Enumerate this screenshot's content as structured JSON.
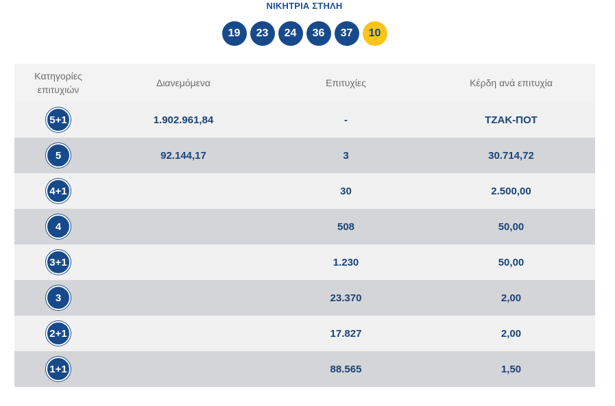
{
  "header": {
    "title": "ΝΙΚΗΤΡΙΑ ΣΤΗΛΗ",
    "numbers": [
      "19",
      "23",
      "24",
      "36",
      "37"
    ],
    "joker": "10"
  },
  "table": {
    "headers": {
      "category_line1": "Κατηγορίες",
      "category_line2": "επιτυχιών",
      "distributed": "Διανεμόμενα",
      "winners": "Επιτυχίες",
      "prize": "Κέρδη ανά επιτυχία"
    },
    "rows": [
      {
        "category": "5+1",
        "distributed": "1.902.961,84",
        "winners": "-",
        "prize": "ΤΖΑΚ-ΠΟΤ"
      },
      {
        "category": "5",
        "distributed": "92.144,17",
        "winners": "3",
        "prize": "30.714,72"
      },
      {
        "category": "4+1",
        "distributed": "",
        "winners": "30",
        "prize": "2.500,00"
      },
      {
        "category": "4",
        "distributed": "",
        "winners": "508",
        "prize": "50,00"
      },
      {
        "category": "3+1",
        "distributed": "",
        "winners": "1.230",
        "prize": "50,00"
      },
      {
        "category": "3",
        "distributed": "",
        "winners": "23.370",
        "prize": "2,00"
      },
      {
        "category": "2+1",
        "distributed": "",
        "winners": "17.827",
        "prize": "2,00"
      },
      {
        "category": "1+1",
        "distributed": "",
        "winners": "88.565",
        "prize": "1,50"
      }
    ]
  },
  "colors": {
    "ball_blue": "#174a8b",
    "joker_yellow": "#f7c51e",
    "row_light": "#f1f1f2",
    "row_dark": "#d4d5d8",
    "value_text": "#1a4378"
  }
}
